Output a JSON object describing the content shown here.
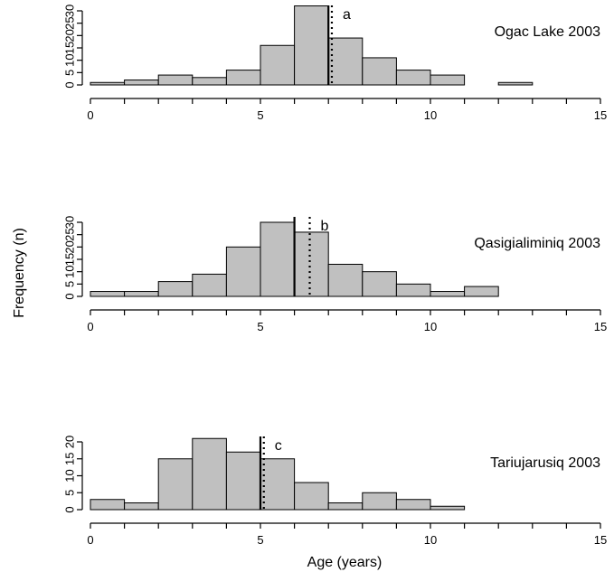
{
  "chart_data": {
    "type": "bar",
    "xlabel": "Age (years)",
    "ylabel": "Frequency (n)",
    "panels": [
      {
        "title": "Ogac Lake 2003",
        "letter": "a",
        "bin_edges": [
          0,
          1,
          2,
          3,
          4,
          5,
          6,
          7,
          8,
          9,
          10,
          11,
          12,
          13,
          14
        ],
        "values": [
          1,
          2,
          4,
          3,
          6,
          16,
          32,
          19,
          11,
          6,
          4,
          0,
          1,
          0
        ],
        "solid_line_x": 7.0,
        "dotted_line_x": 7.1,
        "xlim": [
          0,
          15
        ],
        "xticks": [
          0,
          5,
          10,
          15
        ],
        "yticks": [
          0,
          5,
          10,
          15,
          20,
          25,
          30
        ],
        "ylim": [
          0,
          32
        ]
      },
      {
        "title": "Qasigialiminiq 2003",
        "letter": "b",
        "bin_edges": [
          0,
          1,
          2,
          3,
          4,
          5,
          6,
          7,
          8,
          9,
          10,
          11,
          12,
          13
        ],
        "values": [
          2,
          2,
          6,
          9,
          20,
          30,
          26,
          13,
          10,
          5,
          2,
          4,
          0
        ],
        "solid_line_x": 6.0,
        "dotted_line_x": 6.45,
        "xlim": [
          0,
          15
        ],
        "xticks": [
          0,
          5,
          10,
          15
        ],
        "yticks": [
          0,
          5,
          10,
          15,
          20,
          25,
          30
        ],
        "ylim": [
          0,
          30
        ]
      },
      {
        "title": "Tariujarusiq 2003",
        "letter": "c",
        "bin_edges": [
          0,
          1,
          2,
          3,
          4,
          5,
          6,
          7,
          8,
          9,
          10,
          11,
          12
        ],
        "values": [
          3,
          2,
          15,
          21,
          17,
          15,
          8,
          2,
          5,
          3,
          1,
          0
        ],
        "solid_line_x": 5.0,
        "dotted_line_x": 5.1,
        "xlim": [
          0,
          15
        ],
        "xticks": [
          0,
          5,
          10,
          15
        ],
        "yticks": [
          0,
          5,
          10,
          15,
          20
        ],
        "ylim": [
          0,
          21
        ]
      }
    ]
  }
}
